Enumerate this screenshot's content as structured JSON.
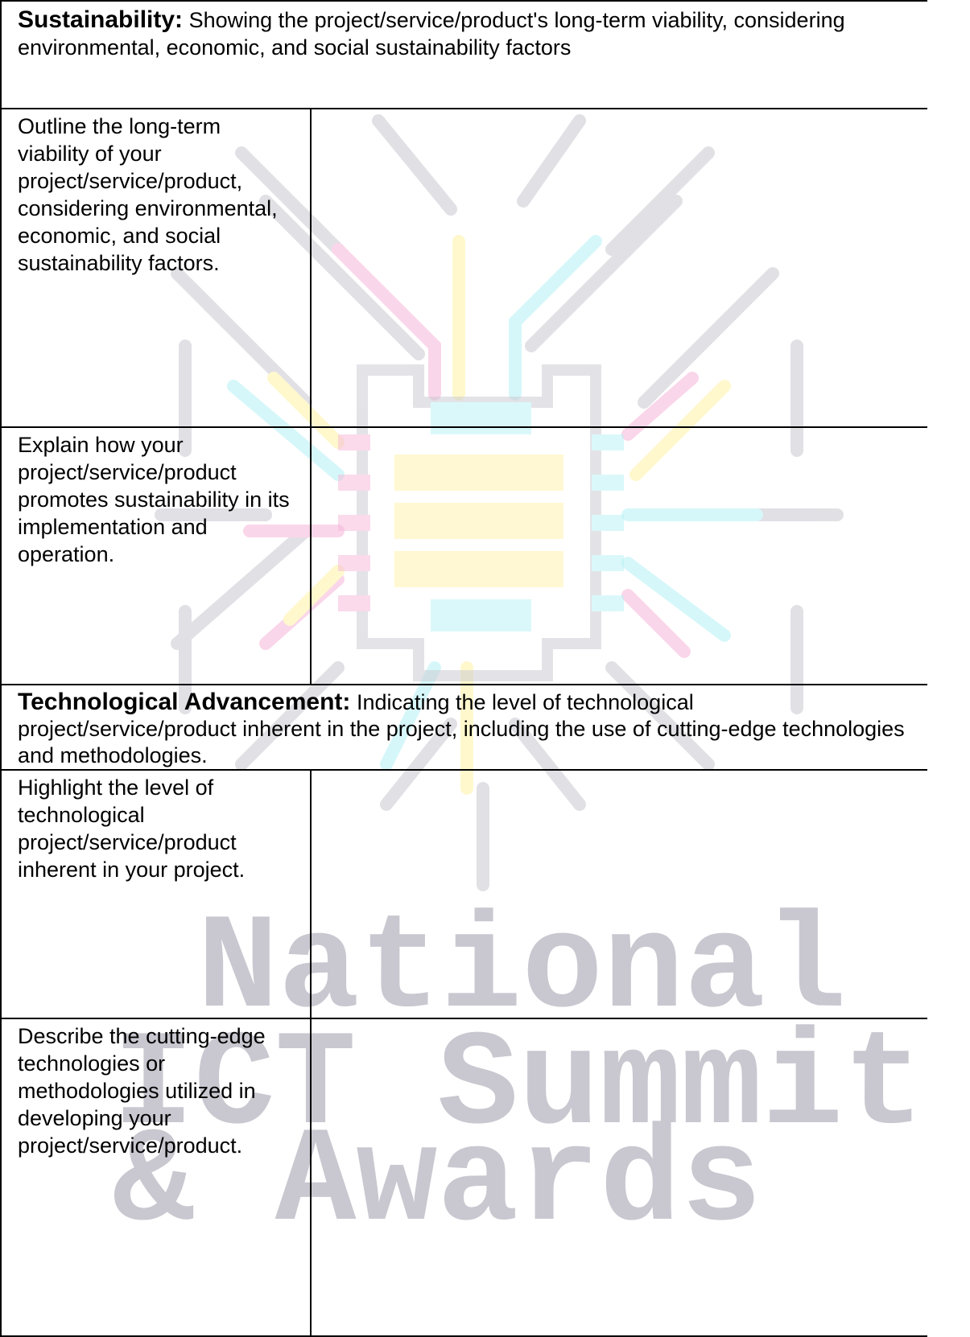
{
  "sections": [
    {
      "title": "Sustainability:",
      "description": "Showing the project/service/product's long-term viability, considering environmental, economic, and social sustainability factors",
      "rows": [
        {
          "prompt": "Outline the long-term viability of your project/service/product, considering environmental, economic, and social sustainability factors."
        },
        {
          "prompt": "Explain how your project/service/product promotes sustainability in its implementation and operation."
        }
      ]
    },
    {
      "title": "Technological Advancement:",
      "description": "Indicating the level of technological project/service/product inherent in the project, including the use of cutting-edge technologies and methodologies.",
      "rows": [
        {
          "prompt": "Highlight the level of technological project/service/product inherent in your project."
        },
        {
          "prompt": "Describe the cutting-edge technologies or methodologies utilized in developing your project/service/product."
        }
      ]
    }
  ],
  "watermark": {
    "lines": [
      "National",
      "ICT Summit",
      "& Awards"
    ]
  }
}
